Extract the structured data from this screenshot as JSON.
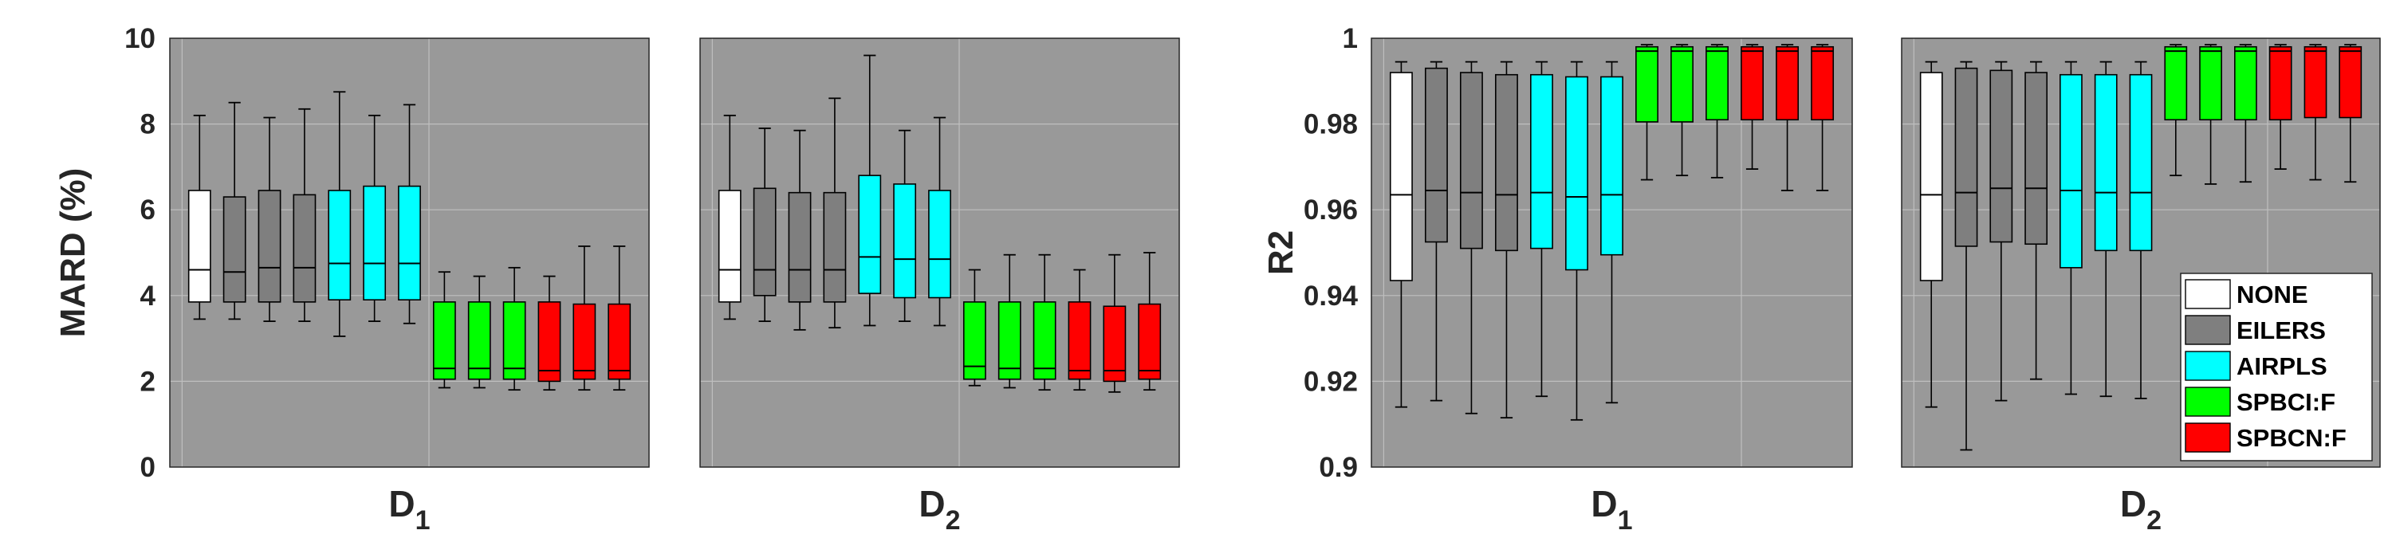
{
  "chart_data": [
    {
      "type": "box",
      "panel": "MARD-D1",
      "ylabel": "MARD (%)",
      "xlabel_main": "D",
      "xlabel_sub": "1",
      "ylim": [
        0,
        10
      ],
      "yticks": [
        "0",
        "2",
        "4",
        "6",
        "8",
        "10"
      ],
      "boxes": [
        {
          "method": "NONE",
          "min": 3.45,
          "q1": 3.85,
          "median": 4.6,
          "q3": 6.45,
          "max": 8.2
        },
        {
          "method": "EILERS",
          "min": 3.45,
          "q1": 3.85,
          "median": 4.55,
          "q3": 6.3,
          "max": 8.5
        },
        {
          "method": "EILERS",
          "min": 3.4,
          "q1": 3.85,
          "median": 4.65,
          "q3": 6.45,
          "max": 8.15
        },
        {
          "method": "EILERS",
          "min": 3.4,
          "q1": 3.85,
          "median": 4.65,
          "q3": 6.35,
          "max": 8.35
        },
        {
          "method": "AIRPLS",
          "min": 3.05,
          "q1": 3.9,
          "median": 4.75,
          "q3": 6.45,
          "max": 8.75
        },
        {
          "method": "AIRPLS",
          "min": 3.4,
          "q1": 3.9,
          "median": 4.75,
          "q3": 6.55,
          "max": 8.2
        },
        {
          "method": "AIRPLS",
          "min": 3.35,
          "q1": 3.9,
          "median": 4.75,
          "q3": 6.55,
          "max": 8.45
        },
        {
          "method": "SPBCI:F",
          "min": 1.85,
          "q1": 2.05,
          "median": 2.3,
          "q3": 3.85,
          "max": 4.55
        },
        {
          "method": "SPBCI:F",
          "min": 1.85,
          "q1": 2.05,
          "median": 2.3,
          "q3": 3.85,
          "max": 4.45
        },
        {
          "method": "SPBCI:F",
          "min": 1.8,
          "q1": 2.05,
          "median": 2.3,
          "q3": 3.85,
          "max": 4.65
        },
        {
          "method": "SPBCN:F",
          "min": 1.8,
          "q1": 2.0,
          "median": 2.25,
          "q3": 3.85,
          "max": 4.45
        },
        {
          "method": "SPBCN:F",
          "min": 1.8,
          "q1": 2.05,
          "median": 2.25,
          "q3": 3.8,
          "max": 5.15
        },
        {
          "method": "SPBCN:F",
          "min": 1.8,
          "q1": 2.05,
          "median": 2.25,
          "q3": 3.8,
          "max": 5.15
        }
      ]
    },
    {
      "type": "box",
      "panel": "MARD-D2",
      "xlabel_main": "D",
      "xlabel_sub": "2",
      "ylim": [
        0,
        10
      ],
      "boxes": [
        {
          "method": "NONE",
          "min": 3.45,
          "q1": 3.85,
          "median": 4.6,
          "q3": 6.45,
          "max": 8.2
        },
        {
          "method": "EILERS",
          "min": 3.4,
          "q1": 4.0,
          "median": 4.6,
          "q3": 6.5,
          "max": 7.9
        },
        {
          "method": "EILERS",
          "min": 3.2,
          "q1": 3.85,
          "median": 4.6,
          "q3": 6.4,
          "max": 7.85
        },
        {
          "method": "EILERS",
          "min": 3.25,
          "q1": 3.85,
          "median": 4.6,
          "q3": 6.4,
          "max": 8.6
        },
        {
          "method": "AIRPLS",
          "min": 3.3,
          "q1": 4.05,
          "median": 4.9,
          "q3": 6.8,
          "max": 9.6
        },
        {
          "method": "AIRPLS",
          "min": 3.4,
          "q1": 3.95,
          "median": 4.85,
          "q3": 6.6,
          "max": 7.85
        },
        {
          "method": "AIRPLS",
          "min": 3.3,
          "q1": 3.95,
          "median": 4.85,
          "q3": 6.45,
          "max": 8.15
        },
        {
          "method": "SPBCI:F",
          "min": 1.9,
          "q1": 2.05,
          "median": 2.35,
          "q3": 3.85,
          "max": 4.6
        },
        {
          "method": "SPBCI:F",
          "min": 1.85,
          "q1": 2.05,
          "median": 2.3,
          "q3": 3.85,
          "max": 4.95
        },
        {
          "method": "SPBCI:F",
          "min": 1.8,
          "q1": 2.05,
          "median": 2.3,
          "q3": 3.85,
          "max": 4.95
        },
        {
          "method": "SPBCN:F",
          "min": 1.8,
          "q1": 2.05,
          "median": 2.25,
          "q3": 3.85,
          "max": 4.6
        },
        {
          "method": "SPBCN:F",
          "min": 1.75,
          "q1": 2.0,
          "median": 2.25,
          "q3": 3.75,
          "max": 4.95
        },
        {
          "method": "SPBCN:F",
          "min": 1.8,
          "q1": 2.05,
          "median": 2.25,
          "q3": 3.8,
          "max": 5.0
        }
      ]
    },
    {
      "type": "box",
      "panel": "R2-D1",
      "ylabel": "R2",
      "xlabel_main": "D",
      "xlabel_sub": "1",
      "ylim": [
        0.9,
        1.0
      ],
      "yticks": [
        "0.9",
        "0.92",
        "0.94",
        "0.96",
        "0.98",
        "1"
      ],
      "boxes": [
        {
          "method": "NONE",
          "min": 0.914,
          "q1": 0.9435,
          "median": 0.9635,
          "q3": 0.992,
          "max": 0.9945
        },
        {
          "method": "EILERS",
          "min": 0.9155,
          "q1": 0.9525,
          "median": 0.9645,
          "q3": 0.993,
          "max": 0.9945
        },
        {
          "method": "EILERS",
          "min": 0.9125,
          "q1": 0.951,
          "median": 0.964,
          "q3": 0.992,
          "max": 0.9945
        },
        {
          "method": "EILERS",
          "min": 0.9115,
          "q1": 0.9505,
          "median": 0.9635,
          "q3": 0.9915,
          "max": 0.9945
        },
        {
          "method": "AIRPLS",
          "min": 0.9165,
          "q1": 0.951,
          "median": 0.964,
          "q3": 0.9915,
          "max": 0.9945
        },
        {
          "method": "AIRPLS",
          "min": 0.911,
          "q1": 0.946,
          "median": 0.963,
          "q3": 0.991,
          "max": 0.9945
        },
        {
          "method": "AIRPLS",
          "min": 0.915,
          "q1": 0.9495,
          "median": 0.9635,
          "q3": 0.991,
          "max": 0.9945
        },
        {
          "method": "SPBCI:F",
          "min": 0.967,
          "q1": 0.9805,
          "median": 0.997,
          "q3": 0.998,
          "max": 0.9985
        },
        {
          "method": "SPBCI:F",
          "min": 0.968,
          "q1": 0.9805,
          "median": 0.997,
          "q3": 0.998,
          "max": 0.9985
        },
        {
          "method": "SPBCI:F",
          "min": 0.9675,
          "q1": 0.981,
          "median": 0.997,
          "q3": 0.998,
          "max": 0.9985
        },
        {
          "method": "SPBCN:F",
          "min": 0.9695,
          "q1": 0.981,
          "median": 0.997,
          "q3": 0.998,
          "max": 0.9985
        },
        {
          "method": "SPBCN:F",
          "min": 0.9645,
          "q1": 0.981,
          "median": 0.997,
          "q3": 0.998,
          "max": 0.9985
        },
        {
          "method": "SPBCN:F",
          "min": 0.9645,
          "q1": 0.981,
          "median": 0.997,
          "q3": 0.998,
          "max": 0.9985
        }
      ]
    },
    {
      "type": "box",
      "panel": "R2-D2",
      "xlabel_main": "D",
      "xlabel_sub": "2",
      "ylim": [
        0.9,
        1.0
      ],
      "boxes": [
        {
          "method": "NONE",
          "min": 0.914,
          "q1": 0.9435,
          "median": 0.9635,
          "q3": 0.992,
          "max": 0.9945
        },
        {
          "method": "EILERS",
          "min": 0.904,
          "q1": 0.9515,
          "median": 0.964,
          "q3": 0.993,
          "max": 0.9945
        },
        {
          "method": "EILERS",
          "min": 0.9155,
          "q1": 0.9525,
          "median": 0.965,
          "q3": 0.9925,
          "max": 0.9945
        },
        {
          "method": "EILERS",
          "min": 0.9205,
          "q1": 0.952,
          "median": 0.965,
          "q3": 0.992,
          "max": 0.9945
        },
        {
          "method": "AIRPLS",
          "min": 0.917,
          "q1": 0.9465,
          "median": 0.9645,
          "q3": 0.9915,
          "max": 0.9945
        },
        {
          "method": "AIRPLS",
          "min": 0.9165,
          "q1": 0.9505,
          "median": 0.964,
          "q3": 0.9915,
          "max": 0.9945
        },
        {
          "method": "AIRPLS",
          "min": 0.916,
          "q1": 0.9505,
          "median": 0.964,
          "q3": 0.9915,
          "max": 0.9945
        },
        {
          "method": "SPBCI:F",
          "min": 0.968,
          "q1": 0.981,
          "median": 0.997,
          "q3": 0.998,
          "max": 0.9985
        },
        {
          "method": "SPBCI:F",
          "min": 0.966,
          "q1": 0.981,
          "median": 0.997,
          "q3": 0.998,
          "max": 0.9985
        },
        {
          "method": "SPBCI:F",
          "min": 0.9665,
          "q1": 0.981,
          "median": 0.997,
          "q3": 0.998,
          "max": 0.9985
        },
        {
          "method": "SPBCN:F",
          "min": 0.9695,
          "q1": 0.981,
          "median": 0.997,
          "q3": 0.998,
          "max": 0.9985
        },
        {
          "method": "SPBCN:F",
          "min": 0.967,
          "q1": 0.9815,
          "median": 0.997,
          "q3": 0.998,
          "max": 0.9985
        },
        {
          "method": "SPBCN:F",
          "min": 0.9665,
          "q1": 0.9815,
          "median": 0.997,
          "q3": 0.998,
          "max": 0.9985
        }
      ]
    }
  ],
  "legend": {
    "placement": "bottom-right",
    "entries": [
      {
        "label": "NONE",
        "color": "#ffffff"
      },
      {
        "label": "EILERS",
        "color": "#7f7f7f"
      },
      {
        "label": "AIRPLS",
        "color": "#00ffff"
      },
      {
        "label": "SPBCI:F",
        "color": "#00ff00"
      },
      {
        "label": "SPBCN:F",
        "color": "#ff0000"
      }
    ]
  },
  "style": {
    "plot_background": "#999999",
    "grid_color": "#bfbfbf",
    "text_color": "#262626",
    "grid": true
  }
}
